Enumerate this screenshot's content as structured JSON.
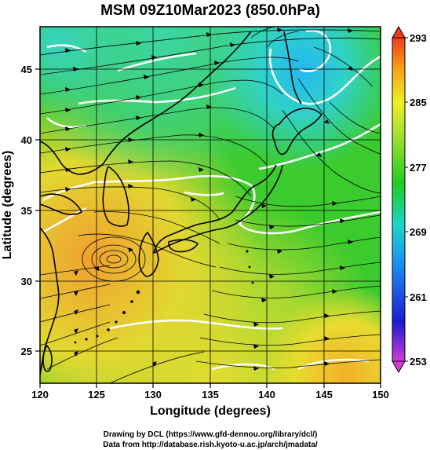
{
  "title": "MSM 09Z10Mar2023 (850.0hPa)",
  "x_axis": {
    "label": "Longitude (degrees)",
    "range": [
      120,
      150
    ],
    "ticks": [
      "120",
      "125",
      "130",
      "135",
      "140",
      "145",
      "150"
    ]
  },
  "y_axis": {
    "label": "Latitude  (degrees)",
    "range": [
      22.5,
      48
    ],
    "ticks": [
      "25",
      "30",
      "35",
      "40",
      "45"
    ]
  },
  "colorbar": {
    "range": [
      253,
      293
    ],
    "ticks": [
      "293",
      "285",
      "277",
      "269",
      "261",
      "253"
    ],
    "colors": [
      "#d43cd8",
      "#1b1bd0",
      "#1c8ff0",
      "#19d6c8",
      "#22cc22",
      "#a4e030",
      "#f0ee22",
      "#f6a618",
      "#f43a1c"
    ]
  },
  "field": {
    "description_colors": {
      "warm_southwest": "#f0a030",
      "green_central": "#3ccb2e",
      "cool_north": "#30d08a",
      "cold_hokkaido": "#44c8f0"
    }
  },
  "credits": {
    "line1": "Drawing by DCL (https://www.gfd-dennou.org/library/dcl/)",
    "line2": "Data from http://database.rish.kyoto-u.ac.jp/arch/jmadata/"
  }
}
